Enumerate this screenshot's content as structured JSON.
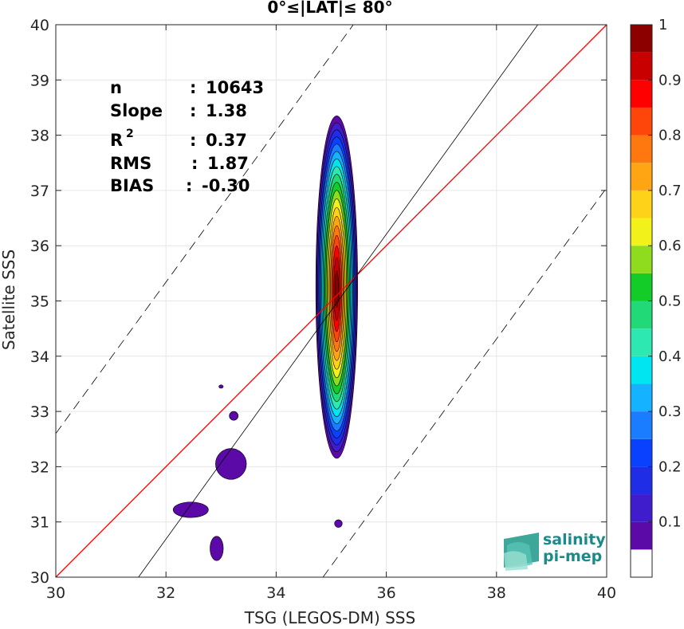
{
  "chart_data": {
    "type": "heatmap",
    "title": "0°≤|LAT|≤ 80°",
    "xlabel": "TSG (LEGOS-DM) SSS",
    "ylabel": "Satellite SSS",
    "xlim": [
      30,
      40
    ],
    "ylim": [
      30,
      40
    ],
    "xticks": [
      "30",
      "32",
      "34",
      "36",
      "38",
      "40"
    ],
    "yticks": [
      "30",
      "31",
      "32",
      "33",
      "34",
      "35",
      "36",
      "37",
      "38",
      "39",
      "40"
    ],
    "grid": true,
    "colorbar": {
      "range": [
        0,
        1
      ],
      "ticks": [
        "0.1",
        "0.2",
        "0.3",
        "0.4",
        "0.5",
        "0.6",
        "0.7",
        "0.8",
        "0.9",
        "1"
      ],
      "levels": [
        "#ffffff",
        "#5b0aa8",
        "#3f1ccc",
        "#1f2ee6",
        "#0a41ff",
        "#1a7cff",
        "#14b2ff",
        "#00e5f0",
        "#2de8b0",
        "#22d978",
        "#14cc28",
        "#8fdb1e",
        "#f2f21a",
        "#ffd21a",
        "#ffa514",
        "#ff780f",
        "#ff460a",
        "#ff0000",
        "#c80000",
        "#8c0000"
      ]
    },
    "lines": {
      "one_to_one": {
        "color": "#ff0000",
        "from": [
          30,
          30
        ],
        "to": [
          40,
          40
        ]
      },
      "regression": {
        "color": "#000000",
        "slope": 1.38,
        "from": [
          31.5,
          30
        ],
        "to": [
          38.75,
          40
        ]
      },
      "upper_dashed": {
        "color": "#000000",
        "from": [
          30,
          32.6
        ],
        "to": [
          35.4,
          40
        ]
      },
      "lower_dashed": {
        "color": "#000000",
        "from": [
          34.85,
          30
        ],
        "to": [
          40,
          37.05
        ]
      }
    },
    "density_core": {
      "x_center": 35.1,
      "y_center": 35.25
    },
    "stats": [
      {
        "label": "n",
        "sep": ": ",
        "value": "10643"
      },
      {
        "label": "Slope",
        "sep": ": ",
        "value": "1.38"
      },
      {
        "label": "R",
        "sup": "2",
        "sep": ": ",
        "value": "0.37"
      },
      {
        "label": "RMS",
        "sep": ": ",
        "value": "1.87"
      },
      {
        "label": "BIAS",
        "sep": ": ",
        "value": "-0.30"
      }
    ]
  },
  "logo": {
    "line1": "salinity",
    "line2": "pi-mep",
    "color": "#1a8a8a"
  }
}
